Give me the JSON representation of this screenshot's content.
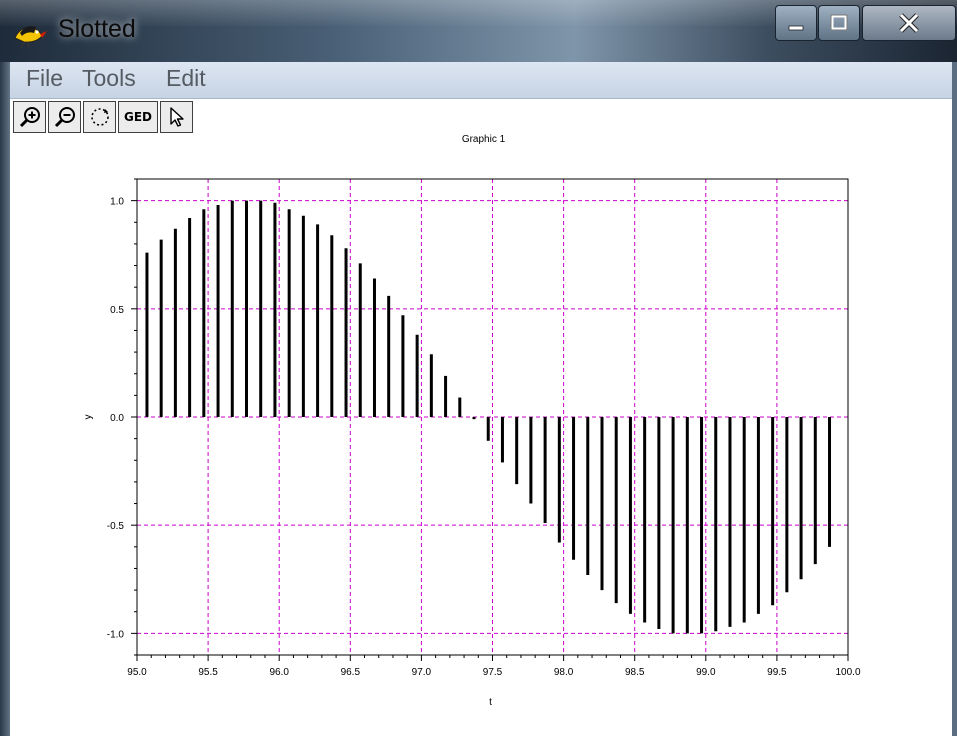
{
  "window": {
    "title": "Slotted",
    "icon": "bird-app-icon",
    "controls": [
      "minimize-icon",
      "maximize-icon",
      "close-icon"
    ]
  },
  "menubar": {
    "items": [
      {
        "label": "File"
      },
      {
        "label": "Tools"
      },
      {
        "label": "Edit"
      }
    ]
  },
  "toolbar": {
    "items": [
      {
        "name": "zoom-in",
        "icon": "zoom-in-icon"
      },
      {
        "name": "zoom-out",
        "icon": "zoom-out-icon"
      },
      {
        "name": "rotate",
        "icon": "rotate-icon"
      },
      {
        "name": "ged",
        "label": "GED"
      },
      {
        "name": "select",
        "icon": "pointer-icon"
      }
    ]
  },
  "colors": {
    "grid": "#cc00cc",
    "stems": "#000000"
  },
  "chart_data": {
    "type": "stem",
    "title": "Graphic 1",
    "xlabel": "t",
    "ylabel": "y",
    "xlim": [
      95.0,
      100.0
    ],
    "ylim": [
      -1.1,
      1.1
    ],
    "xticks": [
      "95.0",
      "95.5",
      "96.0",
      "96.5",
      "97.0",
      "97.5",
      "98.0",
      "98.5",
      "99.0",
      "99.5",
      "100.0"
    ],
    "yticks": [
      "1.0",
      "0.5",
      "0.0",
      "-0.5",
      "-1.0"
    ],
    "grid": true,
    "x": [
      95.07,
      95.17,
      95.27,
      95.37,
      95.47,
      95.57,
      95.67,
      95.77,
      95.87,
      95.97,
      96.07,
      96.17,
      96.27,
      96.37,
      96.47,
      96.57,
      96.67,
      96.77,
      96.87,
      96.97,
      97.07,
      97.17,
      97.27,
      97.37,
      97.47,
      97.57,
      97.67,
      97.77,
      97.87,
      97.97,
      98.07,
      98.17,
      98.27,
      98.37,
      98.47,
      98.57,
      98.67,
      98.77,
      98.87,
      98.97,
      99.07,
      99.17,
      99.27,
      99.37,
      99.47,
      99.57,
      99.67,
      99.77,
      99.87
    ],
    "values": [
      0.76,
      0.82,
      0.87,
      0.92,
      0.96,
      0.98,
      1.0,
      1.0,
      1.0,
      0.99,
      0.96,
      0.93,
      0.89,
      0.84,
      0.78,
      0.71,
      0.64,
      0.56,
      0.47,
      0.38,
      0.29,
      0.19,
      0.09,
      -0.01,
      -0.11,
      -0.21,
      -0.31,
      -0.4,
      -0.49,
      -0.58,
      -0.66,
      -0.73,
      -0.8,
      -0.86,
      -0.91,
      -0.95,
      -0.98,
      -1.0,
      -1.0,
      -1.0,
      -0.99,
      -0.97,
      -0.95,
      -0.91,
      -0.87,
      -0.81,
      -0.75,
      -0.68,
      -0.6
    ]
  }
}
